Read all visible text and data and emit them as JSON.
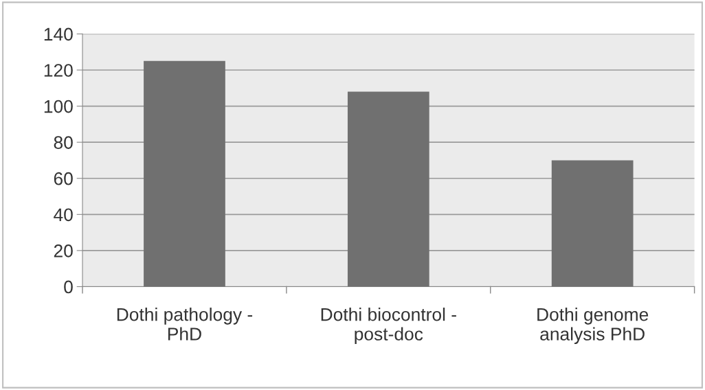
{
  "chart_data": {
    "type": "bar",
    "categories": [
      "Dothi pathology -\nPhD",
      "Dothi biocontrol -\npost-doc",
      "Dothi genome\nanalysis PhD"
    ],
    "values": [
      125,
      108,
      70
    ],
    "color": "#707070",
    "ylim": [
      0,
      140
    ],
    "yticks": [
      0,
      20,
      40,
      60,
      80,
      100,
      120,
      140
    ],
    "grid": "y"
  }
}
